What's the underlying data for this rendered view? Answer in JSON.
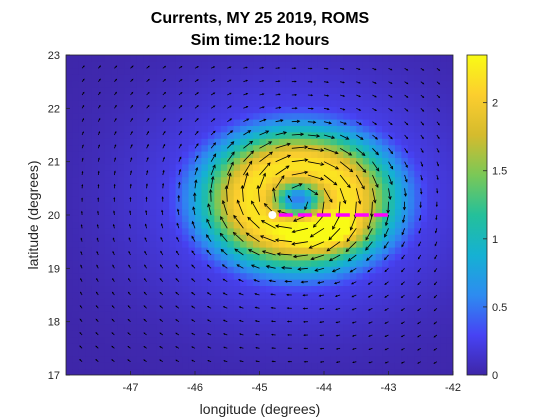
{
  "chart_data": {
    "type": "heatmap",
    "title": [
      "Currents, MY 25 2019, ROMS",
      "Sim time:12 hours"
    ],
    "xlabel": "longitude (degrees)",
    "ylabel": "latitude (degrees)",
    "xlim": [
      -48,
      -42
    ],
    "ylim": [
      17,
      23
    ],
    "xticks": [
      -47,
      -46,
      -45,
      -44,
      -43,
      -42
    ],
    "yticks": [
      17,
      18,
      19,
      20,
      21,
      22,
      23
    ],
    "colorbar": {
      "range": [
        0,
        2.35
      ],
      "ticks": [
        0,
        0.5,
        1,
        1.5,
        2
      ],
      "colormap": "parula",
      "stops": [
        "#3e26a8",
        "#4743f4",
        "#2d8cf0",
        "#15b1d3",
        "#24c09a",
        "#7ac857",
        "#d5bb2d",
        "#fcce2e",
        "#f9fb15"
      ]
    },
    "field": {
      "description_kind": "anticyclonic-like vortex (clockwise flow) centred north-east of storm position",
      "vortex_center": [
        -44.4,
        20.3
      ],
      "peak_speed": 2.2,
      "arrow_grid_spacing_deg": 0.25
    },
    "storm_position": {
      "lon": -44.8,
      "lat": 20.0,
      "color": "#ffffff"
    },
    "track": {
      "lon": [
        -44.7,
        -43.0
      ],
      "lat": [
        20.0,
        20.0
      ],
      "color": "#ff00ff",
      "style": "dashed"
    }
  }
}
